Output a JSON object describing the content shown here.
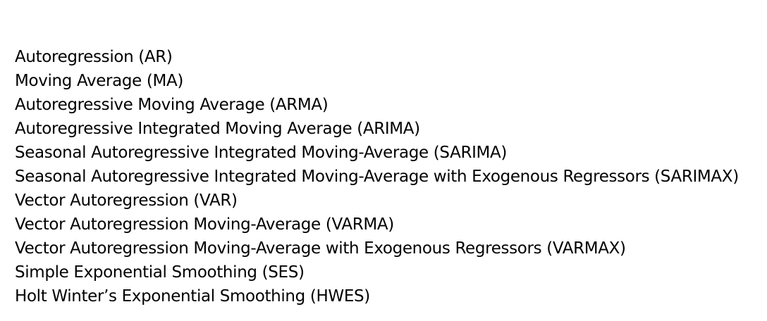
{
  "items": [
    "Autoregression (AR)",
    "Moving Average (MA)",
    "Autoregressive Moving Average (ARMA)",
    "Autoregressive Integrated Moving Average (ARIMA)",
    "Seasonal Autoregressive Integrated Moving-Average (SARIMA)",
    "Seasonal Autoregressive Integrated Moving-Average with Exogenous Regressors (SARIMAX)",
    "Vector Autoregression (VAR)",
    "Vector Autoregression Moving-Average (VARMA)",
    "Vector Autoregression Moving-Average with Exogenous Regressors (VARMAX)",
    "Simple Exponential Smoothing (SES)",
    "Holt Winter’s Exponential Smoothing (HWES)"
  ]
}
